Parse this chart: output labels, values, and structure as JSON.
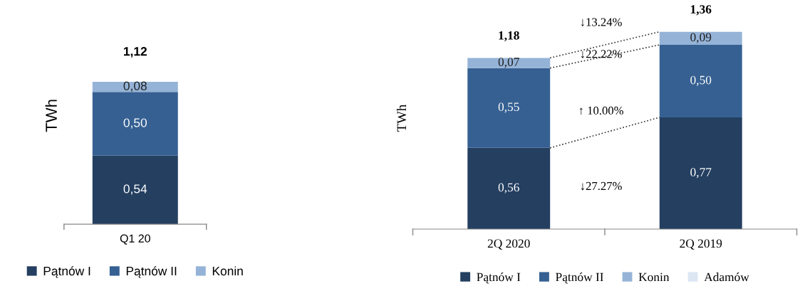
{
  "chart_data": [
    {
      "type": "bar",
      "stacked": true,
      "ylabel": "TWh",
      "categories": [
        "Q1 20"
      ],
      "legend": "bottom",
      "totals": [
        "1,12"
      ],
      "series": [
        {
          "name": "Pątnów I",
          "color": "#243f60",
          "values": [
            0.54
          ],
          "value_labels": [
            "0,54"
          ]
        },
        {
          "name": "Pątnów II",
          "color": "#366092",
          "values": [
            0.5
          ],
          "value_labels": [
            "0,50"
          ]
        },
        {
          "name": "Konin",
          "color": "#95b3d7",
          "values": [
            0.08
          ],
          "value_labels": [
            "0,08"
          ]
        }
      ]
    },
    {
      "type": "bar",
      "stacked": true,
      "ylabel": "TWh",
      "categories": [
        "2Q 2020",
        "2Q 2019"
      ],
      "legend": "bottom",
      "totals": [
        "1,18",
        "1,36"
      ],
      "series": [
        {
          "name": "Pątnów I",
          "color": "#243f60",
          "values": [
            0.56,
            0.77
          ],
          "value_labels": [
            "0,56",
            "0,77"
          ]
        },
        {
          "name": "Pątnów II",
          "color": "#366092",
          "values": [
            0.55,
            0.5
          ],
          "value_labels": [
            "0,55",
            "0,50"
          ]
        },
        {
          "name": "Konin",
          "color": "#95b3d7",
          "values": [
            0.07,
            0.09
          ],
          "value_labels": [
            "0,07",
            "0,09"
          ]
        },
        {
          "name": "Adamów",
          "color": "#dce6f2",
          "values": [
            null,
            null
          ]
        }
      ],
      "annotations": [
        "↓13.24%",
        "↓22.22%",
        "↑ 10.00%",
        "↓27.27%"
      ]
    }
  ]
}
